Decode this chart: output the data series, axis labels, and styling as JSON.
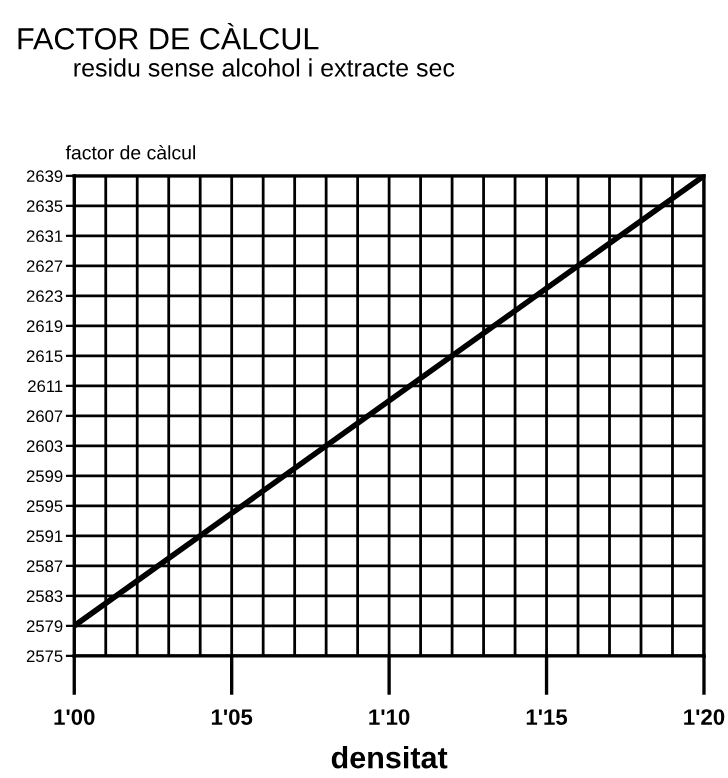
{
  "chart_data": {
    "type": "line",
    "title": "FACTOR DE CÀLCUL",
    "subtitle": "residu sense alcohol i extracte sec",
    "ylabel": "factor de càlcul",
    "xlabel": "densitat",
    "categories": [
      "1'00",
      "1'05",
      "1'10",
      "1'15",
      "1'20"
    ],
    "series": [
      {
        "color": "#000000",
        "values": [
          2579,
          2594,
          2609,
          2624,
          2639
        ]
      }
    ],
    "ylim": [
      2575,
      2639
    ],
    "yticks": [
      2575,
      2579,
      2583,
      2587,
      2591,
      2595,
      2599,
      2603,
      2607,
      2611,
      2615,
      2619,
      2623,
      2627,
      2631,
      2635,
      2639
    ],
    "grid": true,
    "marker": "none",
    "line_style": "solid"
  }
}
